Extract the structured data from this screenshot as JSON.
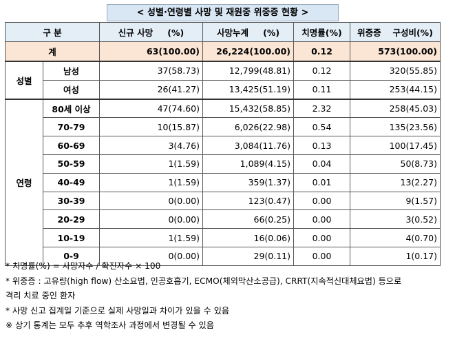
{
  "title": "< 성별·연령별 사망 및 재원중 위중증 현황 >",
  "headers": {
    "category": "구 분",
    "new_deaths": "신규 사망 　 (%)",
    "cum_deaths": "사망누계 　 (%)",
    "fatality": "치명률(%)",
    "critical": "위중증 　구성비(%)"
  },
  "total": {
    "label": "계",
    "new_deaths": "63(100.00)",
    "cum_deaths": "26,224(100.00)",
    "fatality": "0.12",
    "critical": "573(100.00)"
  },
  "sex_group": {
    "label": "성별",
    "rows": [
      {
        "label": "남성",
        "new_deaths": "37(58.73)",
        "cum_deaths": "12,799(48.81)",
        "fatality": "0.12",
        "critical": "320(55.85)"
      },
      {
        "label": "여성",
        "new_deaths": "26(41.27)",
        "cum_deaths": "13,425(51.19)",
        "fatality": "0.11",
        "critical": "253(44.15)"
      }
    ]
  },
  "age_group": {
    "label": "연령",
    "rows": [
      {
        "label": "80세 이상",
        "new_deaths": "47(74.60)",
        "cum_deaths": "15,432(58.85)",
        "fatality": "2.32",
        "critical": "258(45.03)"
      },
      {
        "label": "70-79",
        "new_deaths": "10(15.87)",
        "cum_deaths": "6,026(22.98)",
        "fatality": "0.54",
        "critical": "135(23.56)"
      },
      {
        "label": "60-69",
        "new_deaths": "3(4.76)",
        "cum_deaths": "3,084(11.76)",
        "fatality": "0.13",
        "critical": "100(17.45)"
      },
      {
        "label": "50-59",
        "new_deaths": "1(1.59)",
        "cum_deaths": "1,089(4.15)",
        "fatality": "0.04",
        "critical": "50(8.73)"
      },
      {
        "label": "40-49",
        "new_deaths": "1(1.59)",
        "cum_deaths": "359(1.37)",
        "fatality": "0.01",
        "critical": "13(2.27)"
      },
      {
        "label": "30-39",
        "new_deaths": "0(0.00)",
        "cum_deaths": "123(0.47)",
        "fatality": "0.00",
        "critical": "9(1.57)"
      },
      {
        "label": "20-29",
        "new_deaths": "0(0.00)",
        "cum_deaths": "66(0.25)",
        "fatality": "0.00",
        "critical": "3(0.52)"
      },
      {
        "label": "10-19",
        "new_deaths": "1(1.59)",
        "cum_deaths": "16(0.06)",
        "fatality": "0.00",
        "critical": "4(0.70)"
      },
      {
        "label": "0-9",
        "new_deaths": "0(0.00)",
        "cum_deaths": "29(0.11)",
        "fatality": "0.00",
        "critical": "1(0.17)"
      }
    ]
  },
  "notes": [
    "* 치명률(%) = 사망자수 / 확진자수 × 100",
    "* 위중증 : 고유량(high flow) 산소요법, 인공호흡기, ECMO(체외막산소공급), CRRT(지속적신대체요법) 등으로",
    "격리 치료 중인 환자",
    "* 사망 신고 집계일 기준으로 실제 사망일과 차이가 있을 수 있음",
    "※ 상기 통계는 모두 추후 역학조사 과정에서 변경될 수 있음"
  ]
}
